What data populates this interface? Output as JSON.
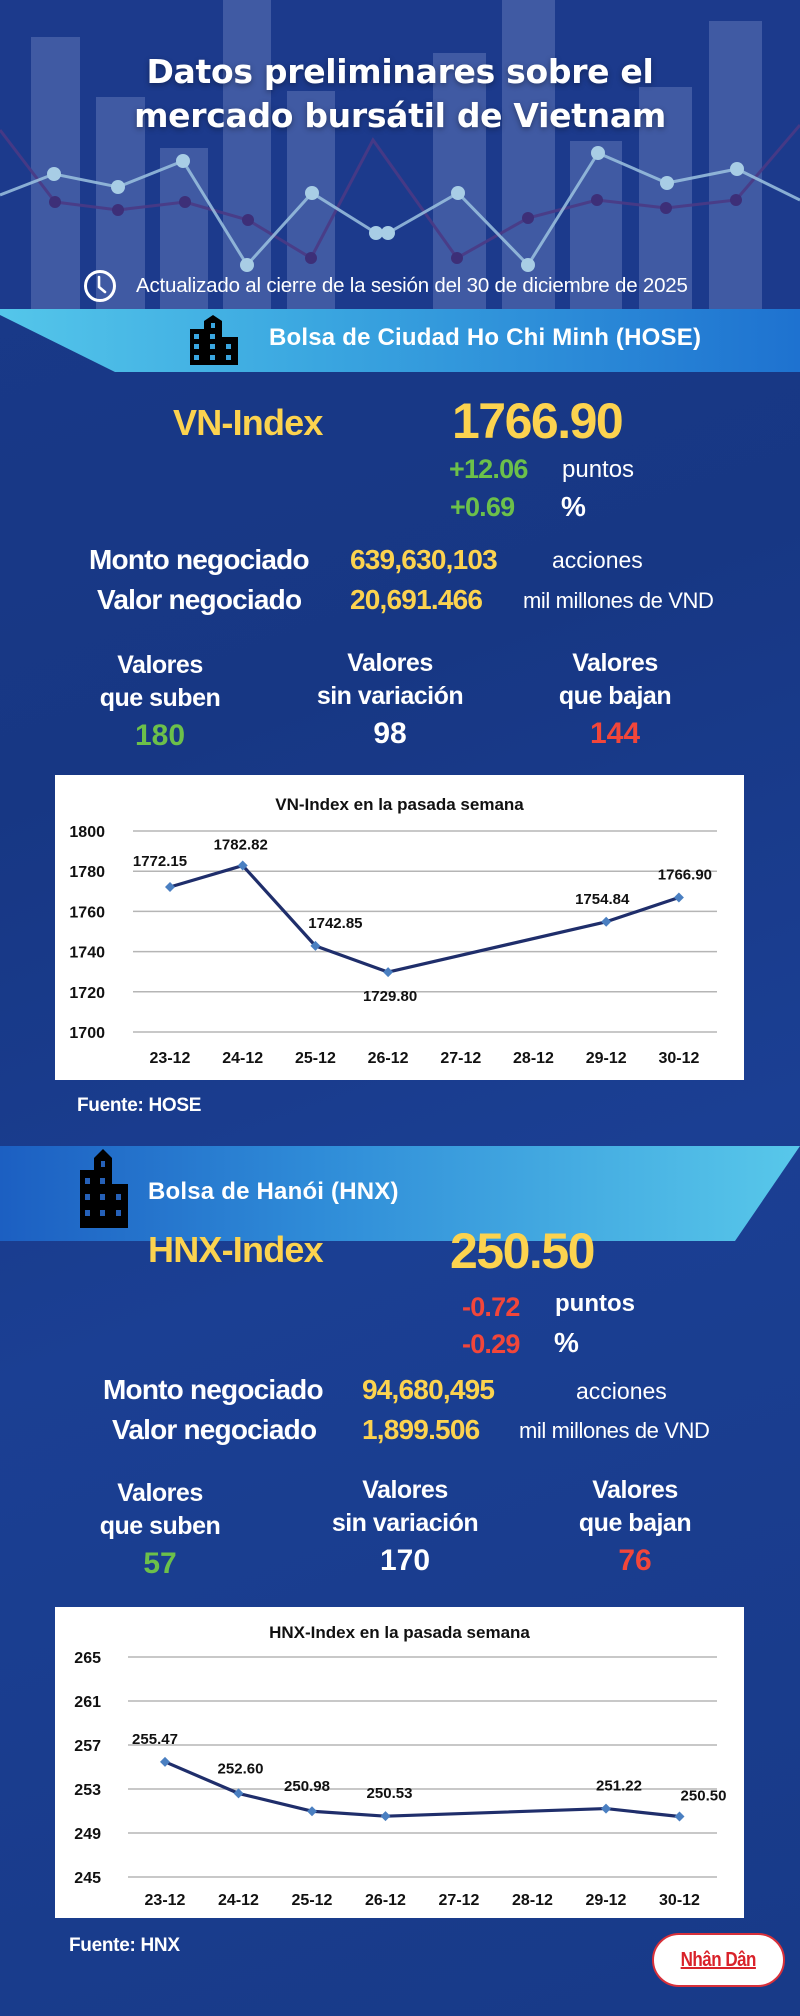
{
  "header": {
    "title_line1": "Datos preliminares sobre el",
    "title_line2": "mercado bursátil de Vietnam",
    "updated_icon": "clock-icon",
    "updated_text": "Actualizado al cierre de la sesión del 30 de diciembre de 2025"
  },
  "colors": {
    "background": "#183a88",
    "yellow": "#fcd34f",
    "green": "#6cc04a",
    "red": "#f2463a",
    "line": "#1f2e6b",
    "marker": "#4a7fc1"
  },
  "hose": {
    "banner_icon": "building-icon",
    "banner_title": "Bolsa de Ciudad Ho Chi Minh (HOSE)",
    "index_name": "VN-Index",
    "index_value": "1766.90",
    "change_points": "+12.06",
    "points_unit": "puntos",
    "change_percent": "+0.69",
    "percent_unit": "%",
    "volume_label": "Monto negociado",
    "volume_value": "639,630,103",
    "volume_unit": "acciones",
    "value_label": "Valor negociado",
    "value_value": "20,691.466",
    "value_unit": "mil millones de VND",
    "stats": {
      "up": {
        "line1": "Valores",
        "line2": "que suben",
        "count": "180"
      },
      "unchanged": {
        "line1": "Valores",
        "line2": "sin variación",
        "count": "98"
      },
      "down": {
        "line1": "Valores",
        "line2": "que bajan",
        "count": "144"
      }
    },
    "source": "Fuente: HOSE"
  },
  "hnx": {
    "banner_icon": "building-icon",
    "banner_title": "Bolsa de Hanói (HNX)",
    "index_name": "HNX-Index",
    "index_value": "250.50",
    "change_points": "-0.72",
    "points_unit": "puntos",
    "change_percent": "-0.29",
    "percent_unit": "%",
    "volume_label": "Monto negociado",
    "volume_value": "94,680,495",
    "volume_unit": "acciones",
    "value_label": "Valor negociado",
    "value_value": "1,899.506",
    "value_unit": "mil millones de VND",
    "stats": {
      "up": {
        "line1": "Valores",
        "line2": "que suben",
        "count": "57"
      },
      "unchanged": {
        "line1": "Valores",
        "line2": "sin variación",
        "count": "170"
      },
      "down": {
        "line1": "Valores",
        "line2": "que bajan",
        "count": "76"
      }
    },
    "source": "Fuente:  HNX"
  },
  "logo": {
    "text": "Nhân Dân"
  },
  "chart_data": [
    {
      "type": "line",
      "title": "VN-Index en la pasada semana",
      "xlabel": "",
      "ylabel": "",
      "categories": [
        "23-12",
        "24-12",
        "25-12",
        "26-12",
        "27-12",
        "28-12",
        "29-12",
        "30-12"
      ],
      "series": [
        {
          "name": "VN-Index",
          "points": [
            {
              "x": "23-12",
              "y": 1772.15
            },
            {
              "x": "24-12",
              "y": 1782.82
            },
            {
              "x": "25-12",
              "y": 1742.85
            },
            {
              "x": "26-12",
              "y": 1729.8
            },
            {
              "x": "29-12",
              "y": 1754.84
            },
            {
              "x": "30-12",
              "y": 1766.9
            }
          ],
          "values": [
            1772.15,
            1782.82,
            1742.85,
            1729.8,
            null,
            null,
            1754.84,
            1766.9
          ],
          "labels": [
            "1772.15",
            "1782.82",
            "1742.85",
            "1729.80",
            "",
            "",
            "1754.84",
            "1766.90"
          ]
        }
      ],
      "yticks": [
        1700,
        1720,
        1740,
        1760,
        1780,
        1800
      ],
      "ylim": [
        1700,
        1800
      ],
      "grid": true,
      "legend": "none"
    },
    {
      "type": "line",
      "title": "HNX-Index en la pasada semana",
      "xlabel": "",
      "ylabel": "",
      "categories": [
        "23-12",
        "24-12",
        "25-12",
        "26-12",
        "27-12",
        "28-12",
        "29-12",
        "30-12"
      ],
      "series": [
        {
          "name": "HNX-Index",
          "points": [
            {
              "x": "23-12",
              "y": 255.47
            },
            {
              "x": "24-12",
              "y": 252.6
            },
            {
              "x": "25-12",
              "y": 250.98
            },
            {
              "x": "26-12",
              "y": 250.53
            },
            {
              "x": "29-12",
              "y": 251.22
            },
            {
              "x": "30-12",
              "y": 250.5
            }
          ],
          "values": [
            255.47,
            252.6,
            250.98,
            250.53,
            null,
            null,
            251.22,
            250.5
          ],
          "labels": [
            "255.47",
            "252.60",
            "250.98",
            "250.53",
            "",
            "",
            "251.22",
            "250.50"
          ]
        }
      ],
      "yticks": [
        245,
        249,
        253,
        257,
        261,
        265
      ],
      "ylim": [
        245,
        265
      ],
      "grid": true,
      "legend": "none"
    }
  ]
}
